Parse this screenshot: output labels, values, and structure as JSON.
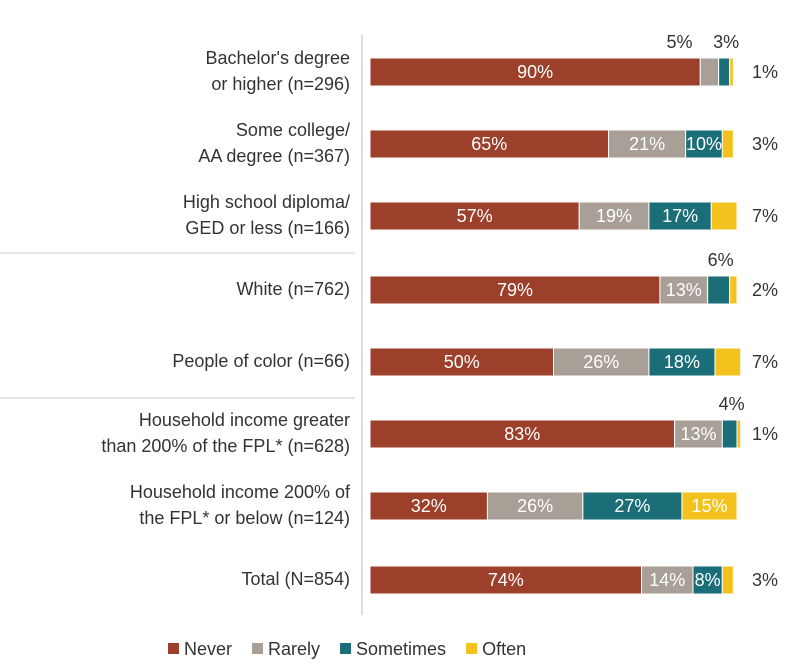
{
  "chart_data": {
    "type": "stacked-bar-horizontal",
    "categories": [
      [
        "Bachelor's degree",
        "or higher (n=296)"
      ],
      [
        "Some college/",
        "AA degree (n=367)"
      ],
      [
        "High school diploma/",
        "GED or less (n=166)"
      ],
      [
        "White (n=762)"
      ],
      [
        "People of color (n=66)"
      ],
      [
        "Household income greater",
        "than 200% of the FPL* (n=628)"
      ],
      [
        "Household income 200% of",
        "the FPL* or below (n=124)"
      ],
      [
        "Total  (N=854)"
      ]
    ],
    "xlim": [
      0,
      100
    ],
    "series": [
      {
        "name": "Never",
        "color": "#9c3f2b",
        "values": [
          90,
          65,
          57,
          79,
          50,
          83,
          32,
          74
        ],
        "value_labels": [
          "90%",
          "65%",
          "57%",
          "79%",
          "50%",
          "83%",
          "32%",
          "74%"
        ]
      },
      {
        "name": "Rarely",
        "color": "#a89f97",
        "values": [
          5,
          21,
          19,
          13,
          26,
          13,
          26,
          14
        ],
        "value_labels": [
          "5%",
          "21%",
          "19%",
          "13%",
          "26%",
          "13%",
          "26%",
          "14%"
        ]
      },
      {
        "name": "Sometimes",
        "color": "#1b6e77",
        "values": [
          3,
          10,
          17,
          6,
          18,
          4,
          27,
          8
        ],
        "value_labels": [
          "3%",
          "10%",
          "17%",
          "6%",
          "18%",
          "4%",
          "27%",
          "8%"
        ]
      },
      {
        "name": "Often",
        "color": "#f4c21c",
        "values": [
          1,
          3,
          7,
          2,
          7,
          1,
          15,
          3
        ],
        "value_labels": [
          "1%",
          "3%",
          "7%",
          "2%",
          "7%",
          "1%",
          "15%",
          "3%"
        ]
      }
    ]
  }
}
